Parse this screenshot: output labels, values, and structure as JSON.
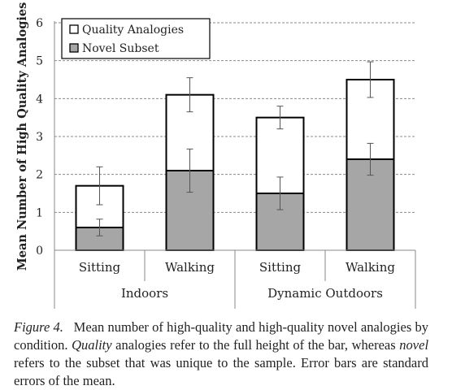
{
  "chart_data": {
    "type": "bar",
    "ylabel": "Mean Number of High Quality Analogies",
    "ylim": [
      0,
      6
    ],
    "yticks": [
      "0",
      "1",
      "2",
      "3",
      "4",
      "5",
      "6"
    ],
    "grid": true,
    "legend_position": "top-left",
    "categories": [
      "Sitting",
      "Walking",
      "Sitting",
      "Walking"
    ],
    "groups": [
      {
        "label": "Indoors",
        "span": [
          0,
          1
        ]
      },
      {
        "label": "Dynamic Outdoors",
        "span": [
          2,
          3
        ]
      }
    ],
    "series": [
      {
        "name": "Quality Analogies",
        "color": "#ffffff",
        "values": [
          1.7,
          4.1,
          3.5,
          4.5
        ],
        "error": [
          0.5,
          0.45,
          0.3,
          0.47
        ]
      },
      {
        "name": "Novel Subset",
        "color": "#a6a6a6",
        "values": [
          0.6,
          2.1,
          1.5,
          2.4
        ],
        "error": [
          0.22,
          0.57,
          0.43,
          0.42
        ]
      }
    ]
  },
  "caption": {
    "lead": "Figure 4.",
    "part1": "Mean number of high-quality and high-quality novel analogies by condition.",
    "quality_word": "Quality",
    "part2": "analogies refer to the full height of the bar, whereas",
    "novel_word": "novel",
    "part3": "refers to the subset that was unique to the sample. Error bars are standard errors of the mean."
  }
}
